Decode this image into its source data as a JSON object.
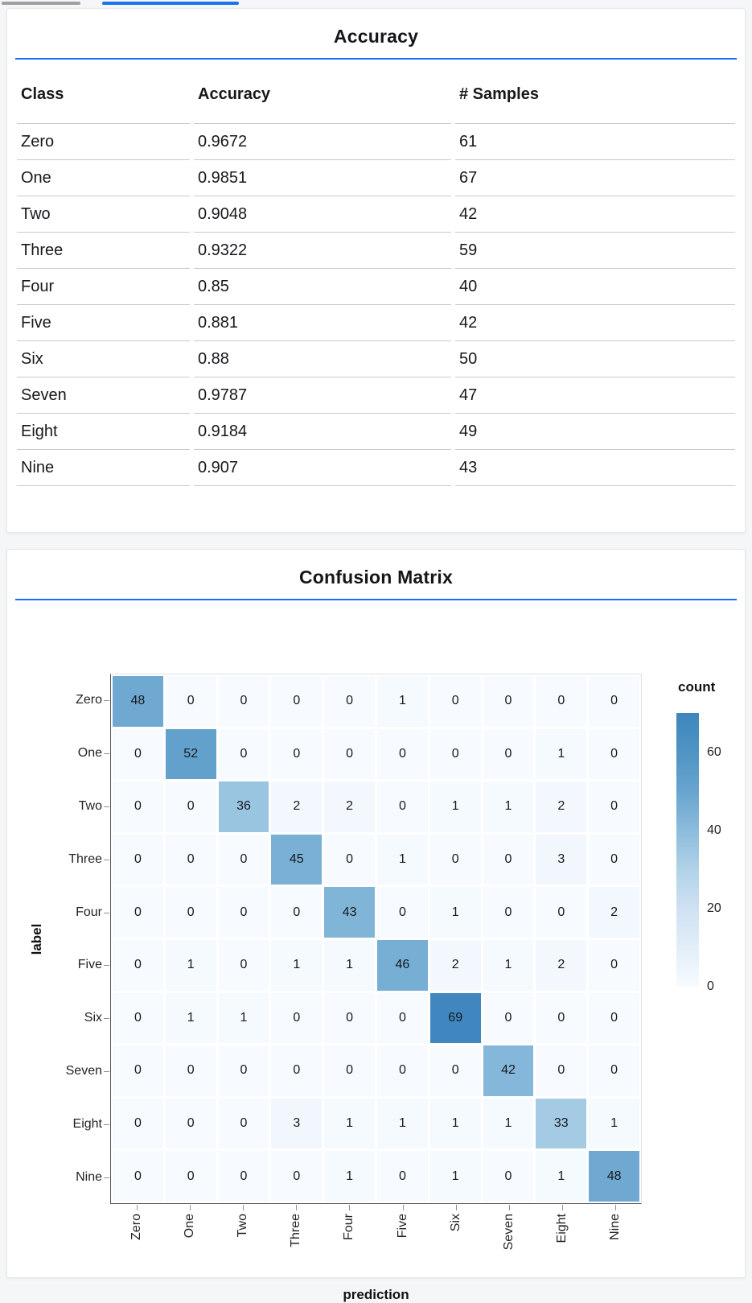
{
  "colors": {
    "accent_blue": "#1b6ef3",
    "top_gray_bar": "#9e9ea3",
    "top_blue_bar": "#1a73e8"
  },
  "accuracy_card": {
    "title": "Accuracy",
    "columns": [
      "Class",
      "Accuracy",
      "# Samples"
    ],
    "rows": [
      [
        "Zero",
        "0.9672",
        "61"
      ],
      [
        "One",
        "0.9851",
        "67"
      ],
      [
        "Two",
        "0.9048",
        "42"
      ],
      [
        "Three",
        "0.9322",
        "59"
      ],
      [
        "Four",
        "0.85",
        "40"
      ],
      [
        "Five",
        "0.881",
        "42"
      ],
      [
        "Six",
        "0.88",
        "50"
      ],
      [
        "Seven",
        "0.9787",
        "47"
      ],
      [
        "Eight",
        "0.9184",
        "49"
      ],
      [
        "Nine",
        "0.907",
        "43"
      ]
    ]
  },
  "confusion_card": {
    "title": "Confusion Matrix"
  },
  "chart_data": {
    "type": "heatmap",
    "title": "Confusion Matrix",
    "xlabel": "prediction",
    "ylabel": "label",
    "x_categories": [
      "Zero",
      "One",
      "Two",
      "Three",
      "Four",
      "Five",
      "Six",
      "Seven",
      "Eight",
      "Nine"
    ],
    "y_categories": [
      "Zero",
      "One",
      "Two",
      "Three",
      "Four",
      "Five",
      "Six",
      "Seven",
      "Eight",
      "Nine"
    ],
    "matrix": [
      [
        48,
        0,
        0,
        0,
        0,
        1,
        0,
        0,
        0,
        0
      ],
      [
        0,
        52,
        0,
        0,
        0,
        0,
        0,
        0,
        1,
        0
      ],
      [
        0,
        0,
        36,
        2,
        2,
        0,
        1,
        1,
        2,
        0
      ],
      [
        0,
        0,
        0,
        45,
        0,
        1,
        0,
        0,
        3,
        0
      ],
      [
        0,
        0,
        0,
        0,
        43,
        0,
        1,
        0,
        0,
        2
      ],
      [
        0,
        1,
        0,
        1,
        1,
        46,
        2,
        1,
        2,
        0
      ],
      [
        0,
        1,
        1,
        0,
        0,
        0,
        69,
        0,
        0,
        0
      ],
      [
        0,
        0,
        0,
        0,
        0,
        0,
        0,
        42,
        0,
        0
      ],
      [
        0,
        0,
        0,
        3,
        1,
        1,
        1,
        1,
        33,
        1
      ],
      [
        0,
        0,
        0,
        0,
        1,
        0,
        1,
        0,
        1,
        48
      ]
    ],
    "legend": {
      "title": "count",
      "ticks": [
        60,
        40,
        20,
        0
      ],
      "domain": [
        0,
        70
      ],
      "position": "right"
    },
    "grid": false,
    "color_stops": [
      [
        0,
        "#f7fbff"
      ],
      [
        10,
        "#e2eef8"
      ],
      [
        20,
        "#cfe1f2"
      ],
      [
        30,
        "#b0d2e8"
      ],
      [
        40,
        "#8bbcdc"
      ],
      [
        50,
        "#68a4cf"
      ],
      [
        60,
        "#4f94c4"
      ],
      [
        70,
        "#3d86bd"
      ]
    ]
  }
}
